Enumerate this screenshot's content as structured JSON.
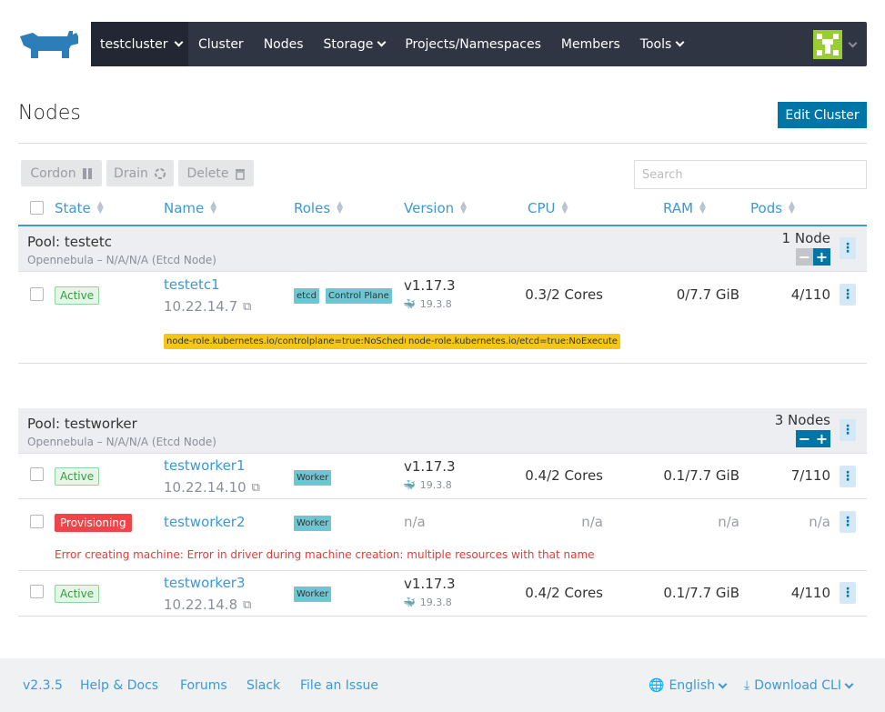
{
  "header": {
    "cluster": "testcluster",
    "nav": [
      "Cluster",
      "Nodes",
      "Storage",
      "Projects/Namespaces",
      "Members",
      "Tools"
    ]
  },
  "page": {
    "title": "Nodes",
    "edit_button": "Edit Cluster"
  },
  "toolbar": {
    "cordon": "Cordon",
    "drain": "Drain",
    "delete": "Delete",
    "search_placeholder": "Search"
  },
  "columns": [
    "State",
    "Name",
    "Roles",
    "Version",
    "CPU",
    "RAM",
    "Pods"
  ],
  "pools": [
    {
      "name": "Pool: testetc",
      "subtitle": "Opennebula – N/A/N/A (Etcd Node)",
      "count": "1 Node",
      "nodes": [
        {
          "state": "Active",
          "name": "testetc1",
          "ip": "10.22.14.7",
          "roles": [
            "etcd",
            "Control Plane"
          ],
          "version": "v1.17.3",
          "docker": "19.3.8",
          "cpu": "0.3/2 Cores",
          "ram": "0/7.7 GiB",
          "pods": "4/110",
          "taints": [
            "node-role.kubernetes.io/controlplane=true:NoSchedule",
            "node-role.kubernetes.io/etcd=true:NoExecute"
          ]
        }
      ]
    },
    {
      "name": "Pool: testworker",
      "subtitle": "Opennebula – N/A/N/A (Etcd Node)",
      "count": "3 Nodes",
      "nodes": [
        {
          "state": "Active",
          "name": "testworker1",
          "ip": "10.22.14.10",
          "roles": [
            "Worker"
          ],
          "version": "v1.17.3",
          "docker": "19.3.8",
          "cpu": "0.4/2 Cores",
          "ram": "0.1/7.7 GiB",
          "pods": "7/110"
        },
        {
          "state": "Provisioning",
          "name": "testworker2",
          "roles": [
            "Worker"
          ],
          "version": "n/a",
          "cpu": "n/a",
          "ram": "n/a",
          "pods": "n/a",
          "error": "Error creating machine: Error in driver during machine creation: multiple resources with that name"
        },
        {
          "state": "Active",
          "name": "testworker3",
          "ip": "10.22.14.8",
          "roles": [
            "Worker"
          ],
          "version": "v1.17.3",
          "docker": "19.3.8",
          "cpu": "0.4/2 Cores",
          "ram": "0.1/7.7 GiB",
          "pods": "4/110"
        }
      ]
    }
  ],
  "footer": {
    "version": "v2.3.5",
    "help": "Help & Docs",
    "forums": "Forums",
    "slack": "Slack",
    "issue": "File an Issue",
    "language": "English",
    "download": "Download CLI"
  },
  "colors": {
    "accent": "#0075a8",
    "link": "#3d98d3",
    "nav_bg": "#2f3542",
    "active_green": "#2ea13a",
    "error_red": "#f0434a",
    "taint_yellow": "#f5c518",
    "role_teal": "#6ec6d2"
  }
}
